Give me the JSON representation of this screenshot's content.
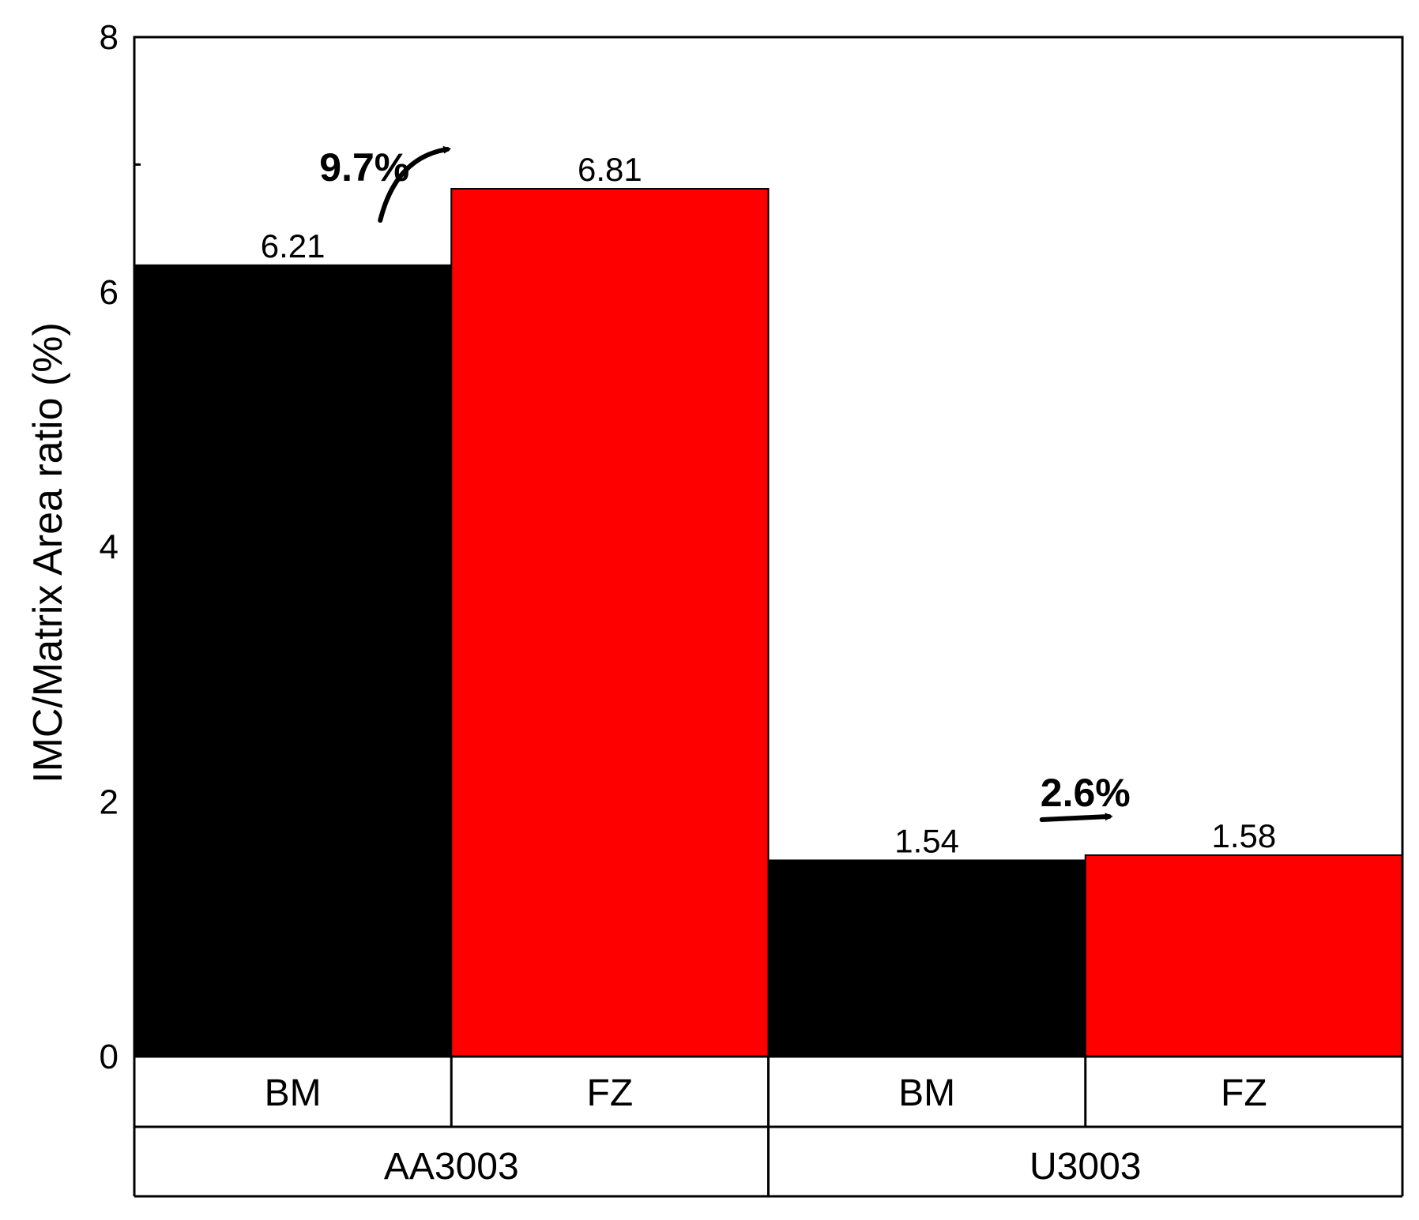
{
  "chart_data": {
    "type": "bar",
    "ylabel": "IMC/Matrix Area ratio (%)",
    "xlabel": "",
    "ylim": [
      0,
      8
    ],
    "yticks": [
      0,
      2,
      4,
      6,
      8
    ],
    "groups": [
      {
        "name": "AA3003",
        "bars": [
          {
            "category": "BM",
            "value": 6.21,
            "label": "6.21",
            "color": "#000000"
          },
          {
            "category": "FZ",
            "value": 6.81,
            "label": "6.81",
            "color": "#ff0000"
          }
        ],
        "annotation": "9.7%"
      },
      {
        "name": "U3003",
        "bars": [
          {
            "category": "BM",
            "value": 1.54,
            "label": "1.54",
            "color": "#000000"
          },
          {
            "category": "FZ",
            "value": 1.58,
            "label": "1.58",
            "color": "#ff0000"
          }
        ],
        "annotation": "2.6%"
      }
    ],
    "legend": "none",
    "grid": false
  }
}
